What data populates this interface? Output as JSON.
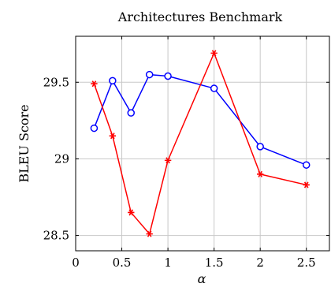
{
  "chart_data": {
    "type": "line",
    "title": "Architectures Benchmark",
    "xlabel": "α",
    "ylabel": "BLEU Score",
    "xlim": [
      0,
      2.75
    ],
    "ylim": [
      28.4,
      29.8
    ],
    "grid": true,
    "x_ticks": [
      0,
      0.5,
      1,
      1.5,
      2,
      2.5
    ],
    "x_tick_labels": [
      "0",
      "0.5",
      "1",
      "1.5",
      "2",
      "2.5"
    ],
    "y_ticks": [
      28.5,
      29,
      29.5
    ],
    "y_tick_labels": [
      "28.5",
      "29",
      "29.5"
    ],
    "series": [
      {
        "color": "#0000ff",
        "marker": "circle",
        "x": [
          0.2,
          0.4,
          0.6,
          0.8,
          1.0,
          1.5,
          2.0,
          2.5
        ],
        "y": [
          29.2,
          29.51,
          29.3,
          29.55,
          29.54,
          29.46,
          29.08,
          28.96
        ]
      },
      {
        "color": "#ff0000",
        "marker": "star",
        "x": [
          0.2,
          0.4,
          0.6,
          0.8,
          1.0,
          1.5,
          2.0,
          2.5
        ],
        "y": [
          29.49,
          29.15,
          28.65,
          28.51,
          28.99,
          29.69,
          28.9,
          28.83
        ]
      }
    ]
  }
}
